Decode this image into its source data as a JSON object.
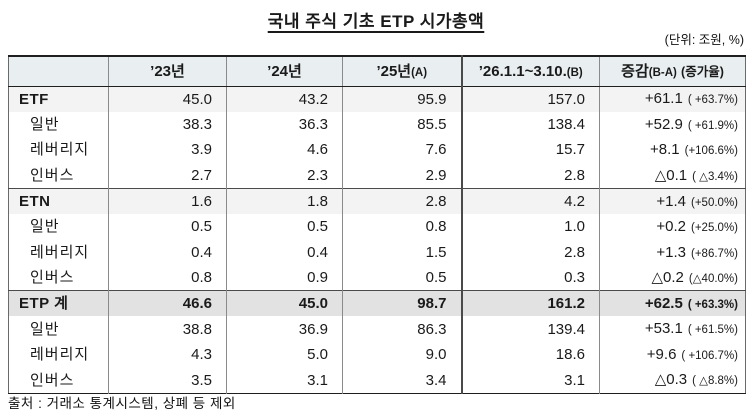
{
  "title": "국내 주식 기초 ETP 시가총액",
  "unit_note": "(단위: 조원, %)",
  "table": {
    "columns": {
      "label": "",
      "y23": "’23년",
      "y24": "’24년",
      "y25": "’25년",
      "y25_suffix": "(A)",
      "y26": "’26.1.1~3.10.",
      "y26_suffix": "(B)",
      "chg": "증감",
      "chg_suffix": "(B-A)",
      "chg_rate": "(증가율)"
    },
    "rows": [
      {
        "label": "ETF",
        "y23": "45.0",
        "y24": "43.2",
        "y25": "95.9",
        "y26": "157.0",
        "chg": "+61.1",
        "rate": "( +63.7%)"
      },
      {
        "label": "일반",
        "y23": "38.3",
        "y24": "36.3",
        "y25": "85.5",
        "y26": "138.4",
        "chg": "+52.9",
        "rate": "( +61.9%)"
      },
      {
        "label": "레버리지",
        "y23": "3.9",
        "y24": "4.6",
        "y25": "7.6",
        "y26": "15.7",
        "chg": "+8.1",
        "rate": "(+106.6%)"
      },
      {
        "label": "인버스",
        "y23": "2.7",
        "y24": "2.3",
        "y25": "2.9",
        "y26": "2.8",
        "chg": "△0.1",
        "rate": "( △3.4%)"
      },
      {
        "label": "ETN",
        "y23": "1.6",
        "y24": "1.8",
        "y25": "2.8",
        "y26": "4.2",
        "chg": "+1.4",
        "rate": "(+50.0%)"
      },
      {
        "label": "일반",
        "y23": "0.5",
        "y24": "0.5",
        "y25": "0.8",
        "y26": "1.0",
        "chg": "+0.2",
        "rate": "(+25.0%)"
      },
      {
        "label": "레버리지",
        "y23": "0.4",
        "y24": "0.4",
        "y25": "1.5",
        "y26": "2.8",
        "chg": "+1.3",
        "rate": "(+86.7%)"
      },
      {
        "label": "인버스",
        "y23": "0.8",
        "y24": "0.9",
        "y25": "0.5",
        "y26": "0.3",
        "chg": "△0.2",
        "rate": "(△40.0%)"
      },
      {
        "label": "ETP 계",
        "y23": "46.6",
        "y24": "45.0",
        "y25": "98.7",
        "y26": "161.2",
        "chg": "+62.5",
        "rate": "( +63.3%)"
      },
      {
        "label": "일반",
        "y23": "38.8",
        "y24": "36.9",
        "y25": "86.3",
        "y26": "139.4",
        "chg": "+53.1",
        "rate": "( +61.5%)"
      },
      {
        "label": "레버리지",
        "y23": "4.3",
        "y24": "5.0",
        "y25": "9.0",
        "y26": "18.6",
        "chg": "+9.6",
        "rate": "( +106.7%)"
      },
      {
        "label": "인버스",
        "y23": "3.5",
        "y24": "3.1",
        "y25": "3.4",
        "y26": "3.1",
        "chg": "△0.3",
        "rate": "( △8.8%)"
      }
    ]
  },
  "footer": "출처 : 거래소 통계시스템, 상폐 등 제외"
}
